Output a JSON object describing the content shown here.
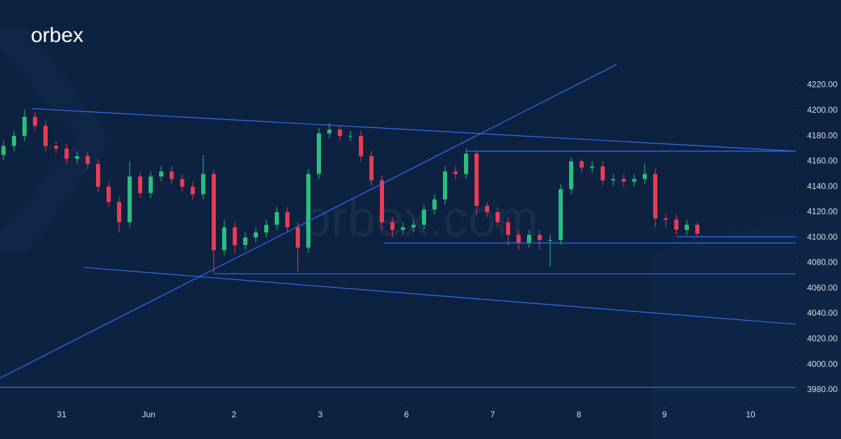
{
  "brand": "orbex",
  "watermark": "orbex.com",
  "chart_data": {
    "type": "candlestick",
    "x": [
      0,
      1,
      2,
      3,
      4,
      5,
      6,
      7,
      8,
      9,
      10,
      11,
      12,
      13,
      14,
      15,
      16,
      17,
      18,
      19,
      20,
      21,
      22,
      23,
      24,
      25,
      26,
      27,
      28,
      29,
      30,
      31,
      32,
      33,
      34,
      35,
      36,
      37,
      38,
      39,
      40,
      41,
      42,
      43,
      44,
      45,
      46,
      47,
      48,
      49,
      50,
      51,
      52,
      53,
      54,
      55,
      56,
      57,
      58,
      59,
      60,
      61,
      62,
      63,
      64,
      65,
      66
    ],
    "open": [
      4165,
      4172,
      4180,
      4195,
      4188,
      4172,
      4170,
      4162,
      4164,
      4158,
      4140,
      4128,
      4112,
      4148,
      4135,
      4148,
      4152,
      4146,
      4140,
      4134,
      4150,
      4090,
      4108,
      4094,
      4100,
      4104,
      4110,
      4120,
      4108,
      4092,
      4150,
      4182,
      4185,
      4180,
      4180,
      4164,
      4145,
      4112,
      4106,
      4108,
      4110,
      4122,
      4130,
      4152,
      4150,
      4166,
      4125,
      4120,
      4112,
      4102,
      4096,
      4102,
      4098,
      4098,
      4138,
      4160,
      4155,
      4156,
      4145,
      4146,
      4144,
      4146,
      4150,
      4115,
      4114,
      4106,
      4110
    ],
    "high": [
      4176,
      4184,
      4201,
      4199,
      4192,
      4176,
      4174,
      4168,
      4168,
      4162,
      4144,
      4132,
      4160,
      4152,
      4152,
      4156,
      4156,
      4150,
      4144,
      4165,
      4154,
      4114,
      4112,
      4104,
      4108,
      4114,
      4124,
      4124,
      4112,
      4154,
      4186,
      4190,
      4188,
      4184,
      4184,
      4168,
      4149,
      4116,
      4112,
      4114,
      4126,
      4134,
      4156,
      4156,
      4170,
      4168,
      4128,
      4124,
      4116,
      4106,
      4106,
      4106,
      4102,
      4142,
      4163,
      4162,
      4160,
      4160,
      4150,
      4150,
      4150,
      4158,
      4154,
      4119,
      4118,
      4114,
      4112
    ],
    "low": [
      4161,
      4168,
      4176,
      4184,
      4168,
      4166,
      4158,
      4158,
      4154,
      4136,
      4124,
      4104,
      4108,
      4131,
      4131,
      4144,
      4142,
      4136,
      4130,
      4130,
      4072,
      4086,
      4088,
      4090,
      4096,
      4100,
      4106,
      4104,
      4073,
      4088,
      4146,
      4178,
      4176,
      4176,
      4160,
      4141,
      4106,
      4100,
      4102,
      4104,
      4106,
      4118,
      4126,
      4146,
      4146,
      4118,
      4116,
      4108,
      4094,
      4090,
      4092,
      4090,
      4077,
      4094,
      4134,
      4151,
      4151,
      4141,
      4141,
      4140,
      4140,
      4142,
      4108,
      4108,
      4102,
      4102,
      4100
    ],
    "close": [
      4172,
      4180,
      4195,
      4188,
      4172,
      4170,
      4162,
      4164,
      4158,
      4140,
      4128,
      4112,
      4148,
      4135,
      4148,
      4152,
      4146,
      4140,
      4134,
      4150,
      4090,
      4108,
      4094,
      4100,
      4104,
      4110,
      4120,
      4108,
      4092,
      4150,
      4182,
      4185,
      4180,
      4180,
      4164,
      4145,
      4112,
      4106,
      4108,
      4110,
      4122,
      4130,
      4152,
      4150,
      4166,
      4125,
      4120,
      4112,
      4102,
      4096,
      4102,
      4098,
      4098,
      4138,
      4160,
      4155,
      4156,
      4145,
      4146,
      4144,
      4146,
      4150,
      4115,
      4114,
      4106,
      4110,
      4103
    ],
    "up_color": "#2bbd7e",
    "down_color": "#e83b55",
    "line_color": "#3a6cf4",
    "xlim": [
      -0.333,
      75.333
    ],
    "ylim": [
      3970,
      4287
    ],
    "xticks": [
      {
        "value": 5.53,
        "label": "31"
      },
      {
        "value": 13.8,
        "label": "Jun"
      },
      {
        "value": 21.93,
        "label": "2"
      },
      {
        "value": 30.13,
        "label": "3"
      },
      {
        "value": 38.33,
        "label": "6"
      },
      {
        "value": 46.53,
        "label": "7"
      },
      {
        "value": 54.73,
        "label": "8"
      },
      {
        "value": 62.87,
        "label": "9"
      },
      {
        "value": 71.07,
        "label": "10"
      }
    ],
    "yticks": [
      {
        "value": 3980,
        "label": "3980.00"
      },
      {
        "value": 4000,
        "label": "4000.00"
      },
      {
        "value": 4020,
        "label": "4020.00"
      },
      {
        "value": 4040,
        "label": "4040.00"
      },
      {
        "value": 4060,
        "label": "4060.00"
      },
      {
        "value": 4080,
        "label": "4080.00"
      },
      {
        "value": 4100,
        "label": "4100.00"
      },
      {
        "value": 4120,
        "label": "4120.00"
      },
      {
        "value": 4140,
        "label": "4140.00"
      },
      {
        "value": 4160,
        "label": "4160.00"
      },
      {
        "value": 4180,
        "label": "4180.00"
      },
      {
        "value": 4200,
        "label": "4200.00"
      },
      {
        "value": 4220,
        "label": "4220.00"
      }
    ],
    "trendlines": [
      {
        "x": [
          2.67,
          75.333
        ],
        "y": [
          4201.5,
          4168
        ]
      },
      {
        "x": [
          -0.333,
          58.33
        ],
        "y": [
          3989.3,
          4236.3
        ]
      },
      {
        "x": [
          7.67,
          75.333
        ],
        "y": [
          4076.4,
          4031.7
        ]
      },
      {
        "x": [
          20,
          75.333
        ],
        "y": [
          4071.4,
          4071.4
        ]
      },
      {
        "x": [
          36.2,
          75.333
        ],
        "y": [
          4095.7,
          4095.7
        ]
      },
      {
        "x": [
          64,
          75.333
        ],
        "y": [
          4100.6,
          4100.6
        ]
      },
      {
        "x": [
          44,
          75.333
        ],
        "y": [
          4168,
          4168
        ]
      },
      {
        "x": [
          -0.333,
          75.333
        ],
        "y": [
          3982,
          3982
        ]
      }
    ]
  }
}
